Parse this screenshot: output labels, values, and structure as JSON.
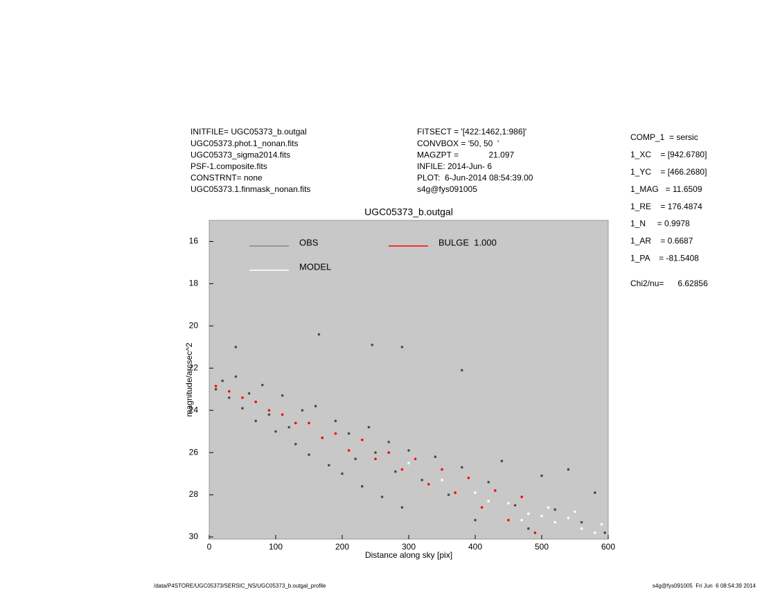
{
  "info_left": [
    "INITFILE= UGC05373_b.outgal",
    "UGC05373.phot.1_nonan.fits",
    "UGC05373_sigma2014.fits",
    "PSF-1.composite.fits",
    "CONSTRNT= none",
    "UGC05373.1.finmask_nonan.fits"
  ],
  "info_middle": [
    "FITSECT = '[422:1462,1:986]'",
    "CONVBOX = '50, 50  '",
    "MAGZPT =             21.097",
    "INFILE: 2014-Jun- 6",
    "PLOT:  6-Jun-2014 08:54:39.00",
    "s4g@fys091005"
  ],
  "params": [
    "COMP_1  = sersic",
    "1_XC    = [942.6780]",
    "1_YC    = [466.2680]",
    "1_MAG   = 11.6509",
    "1_RE    = 176.4874",
    "1_N     = 0.9978",
    "1_AR    = 0.6687",
    "1_PA    = -81.5408"
  ],
  "chi2": "Chi2/nu=      6.62856",
  "footer_left": "/data/P4STORE/UGC05373/SERSIC_NS/UGC05373_b.outgal_profile",
  "footer_right": "s4g@fys091005  Fri Jun  6 08:54:39 2014",
  "chart_data": {
    "type": "scatter",
    "title": "UGC05373_b.outgal",
    "x_label": "Distance along sky [pix]",
    "y_label": "magnitude/arcsec^2",
    "xlim": [
      0,
      600
    ],
    "ylim": [
      30.1,
      15
    ],
    "xticks": [
      0,
      100,
      200,
      300,
      400,
      500,
      600
    ],
    "yticks": [
      16,
      18,
      20,
      22,
      24,
      26,
      28,
      30
    ],
    "grid": false,
    "plot_background": "#c8c8c8",
    "series": [
      {
        "name": "OBS",
        "color": "#4a4a4a",
        "x": [
          10,
          20,
          30,
          40,
          50,
          60,
          70,
          80,
          90,
          100,
          110,
          120,
          130,
          140,
          150,
          160,
          170,
          180,
          190,
          200,
          210,
          220,
          230,
          240,
          250,
          260,
          270,
          280,
          290,
          300,
          320,
          340,
          360,
          380,
          400,
          420,
          440,
          460,
          480,
          500,
          520,
          540,
          560,
          580,
          595,
          165,
          245,
          290,
          380,
          40
        ],
        "values": [
          23.0,
          22.6,
          23.4,
          22.4,
          23.9,
          23.2,
          24.5,
          22.8,
          24.2,
          25.0,
          23.3,
          24.8,
          25.6,
          24.0,
          26.1,
          23.8,
          25.3,
          26.6,
          24.5,
          27.0,
          25.1,
          26.3,
          27.6,
          24.8,
          26.0,
          28.1,
          25.5,
          26.9,
          28.6,
          25.9,
          27.3,
          26.2,
          28.0,
          26.7,
          29.2,
          27.4,
          26.4,
          28.5,
          29.6,
          27.1,
          28.7,
          26.8,
          29.3,
          27.9,
          29.8,
          20.4,
          20.9,
          21.0,
          22.1,
          21.0
        ]
      },
      {
        "name": "MODEL",
        "color": "#ffffff",
        "x": [
          300,
          350,
          400,
          450,
          480,
          500,
          520,
          540,
          560,
          580,
          590,
          470,
          510,
          550,
          420
        ],
        "values": [
          26.5,
          27.3,
          27.9,
          28.4,
          28.9,
          29.0,
          29.3,
          29.1,
          29.6,
          29.8,
          29.4,
          29.2,
          28.6,
          28.8,
          28.3
        ]
      },
      {
        "name": "BULGE  1.000",
        "color": "#ff0000",
        "x": [
          10,
          30,
          50,
          70,
          90,
          110,
          130,
          150,
          170,
          190,
          210,
          230,
          250,
          270,
          290,
          310,
          330,
          350,
          370,
          390,
          410,
          430,
          450,
          470,
          490
        ],
        "values": [
          22.85,
          23.1,
          23.4,
          23.6,
          24.0,
          24.2,
          24.6,
          24.6,
          25.3,
          25.1,
          25.9,
          25.4,
          26.3,
          26.0,
          26.8,
          26.3,
          27.5,
          26.8,
          27.9,
          27.2,
          28.6,
          27.8,
          29.2,
          28.1,
          29.8
        ]
      }
    ]
  }
}
